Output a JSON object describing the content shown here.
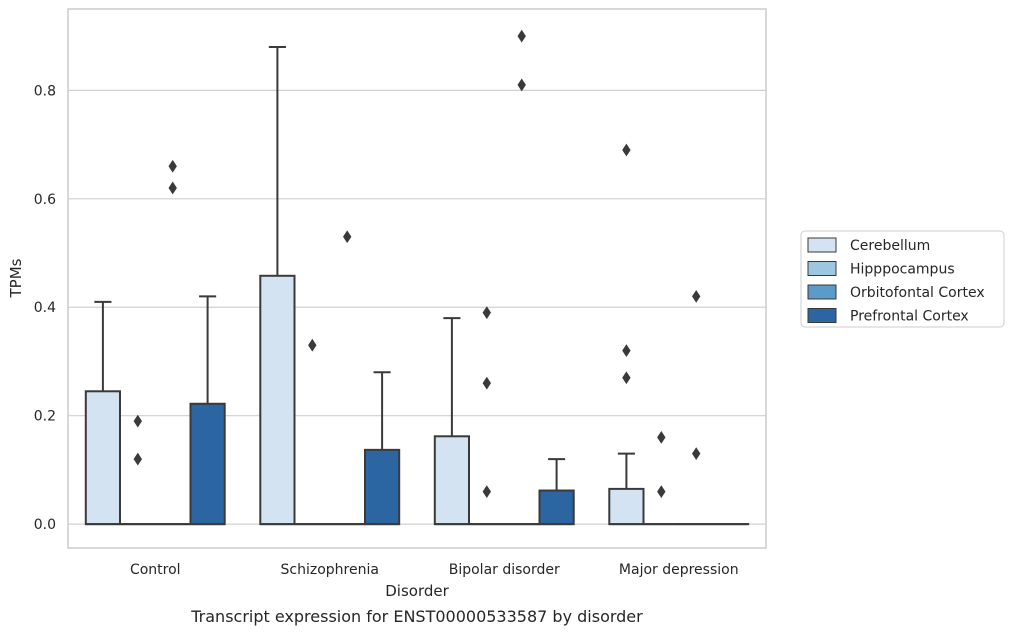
{
  "chart_data": {
    "type": "box",
    "caption": "Transcript expression for ENST00000533587 by disorder",
    "xlabel": "Disorder",
    "ylabel": "TPMs",
    "ylim": [
      -0.044,
      0.95
    ],
    "yticks": [
      0.0,
      0.2,
      0.4,
      0.6,
      0.8
    ],
    "ytick_labels": [
      "0.0",
      "0.2",
      "0.4",
      "0.6",
      "0.8"
    ],
    "grid": "horizontal",
    "legend_position": "right",
    "categories": [
      "Control",
      "Schizophrenia",
      "Bipolar disorder",
      "Major depression"
    ],
    "series": [
      {
        "name": "Cerebellum",
        "color": "#d3e3f2",
        "boxes": [
          {
            "q1": 0.0,
            "median": 0.0,
            "q3": 0.245,
            "whisker_low": 0.0,
            "whisker_high": 0.41,
            "outliers": []
          },
          {
            "q1": 0.0,
            "median": 0.0,
            "q3": 0.458,
            "whisker_low": 0.0,
            "whisker_high": 0.88,
            "outliers": []
          },
          {
            "q1": 0.0,
            "median": 0.0,
            "q3": 0.162,
            "whisker_low": 0.0,
            "whisker_high": 0.38,
            "outliers": []
          },
          {
            "q1": 0.0,
            "median": 0.0,
            "q3": 0.065,
            "whisker_low": 0.0,
            "whisker_high": 0.13,
            "outliers": [
              0.27,
              0.32,
              0.69
            ]
          }
        ]
      },
      {
        "name": "Hipppocampus",
        "color": "#9dc6e0",
        "boxes": [
          {
            "q1": 0.0,
            "median": 0.0,
            "q3": 0.0,
            "whisker_low": 0.0,
            "whisker_high": 0.0,
            "outliers": [
              0.12,
              0.19
            ]
          },
          {
            "q1": 0.0,
            "median": 0.0,
            "q3": 0.0,
            "whisker_low": 0.0,
            "whisker_high": 0.0,
            "outliers": [
              0.33
            ]
          },
          {
            "q1": 0.0,
            "median": 0.0,
            "q3": 0.0,
            "whisker_low": 0.0,
            "whisker_high": 0.0,
            "outliers": [
              0.06,
              0.26,
              0.39
            ]
          },
          {
            "q1": 0.0,
            "median": 0.0,
            "q3": 0.0,
            "whisker_low": 0.0,
            "whisker_high": 0.0,
            "outliers": [
              0.06,
              0.16
            ]
          }
        ]
      },
      {
        "name": "Orbitofontal Cortex",
        "color": "#5a9bc9",
        "boxes": [
          {
            "q1": 0.0,
            "median": 0.0,
            "q3": 0.0,
            "whisker_low": 0.0,
            "whisker_high": 0.0,
            "outliers": [
              0.62,
              0.66
            ]
          },
          {
            "q1": 0.0,
            "median": 0.0,
            "q3": 0.0,
            "whisker_low": 0.0,
            "whisker_high": 0.0,
            "outliers": [
              0.53
            ]
          },
          {
            "q1": 0.0,
            "median": 0.0,
            "q3": 0.0,
            "whisker_low": 0.0,
            "whisker_high": 0.0,
            "outliers": [
              0.81,
              0.9
            ]
          },
          {
            "q1": 0.0,
            "median": 0.0,
            "q3": 0.0,
            "whisker_low": 0.0,
            "whisker_high": 0.0,
            "outliers": [
              0.13,
              0.42
            ]
          }
        ]
      },
      {
        "name": "Prefrontal Cortex",
        "color": "#2b65a2",
        "boxes": [
          {
            "q1": 0.0,
            "median": 0.0,
            "q3": 0.222,
            "whisker_low": 0.0,
            "whisker_high": 0.42,
            "outliers": []
          },
          {
            "q1": 0.0,
            "median": 0.0,
            "q3": 0.137,
            "whisker_low": 0.0,
            "whisker_high": 0.28,
            "outliers": []
          },
          {
            "q1": 0.0,
            "median": 0.0,
            "q3": 0.062,
            "whisker_low": 0.0,
            "whisker_high": 0.12,
            "outliers": []
          },
          {
            "q1": 0.0,
            "median": 0.0,
            "q3": 0.0,
            "whisker_low": 0.0,
            "whisker_high": 0.0,
            "outliers": []
          }
        ]
      }
    ]
  }
}
